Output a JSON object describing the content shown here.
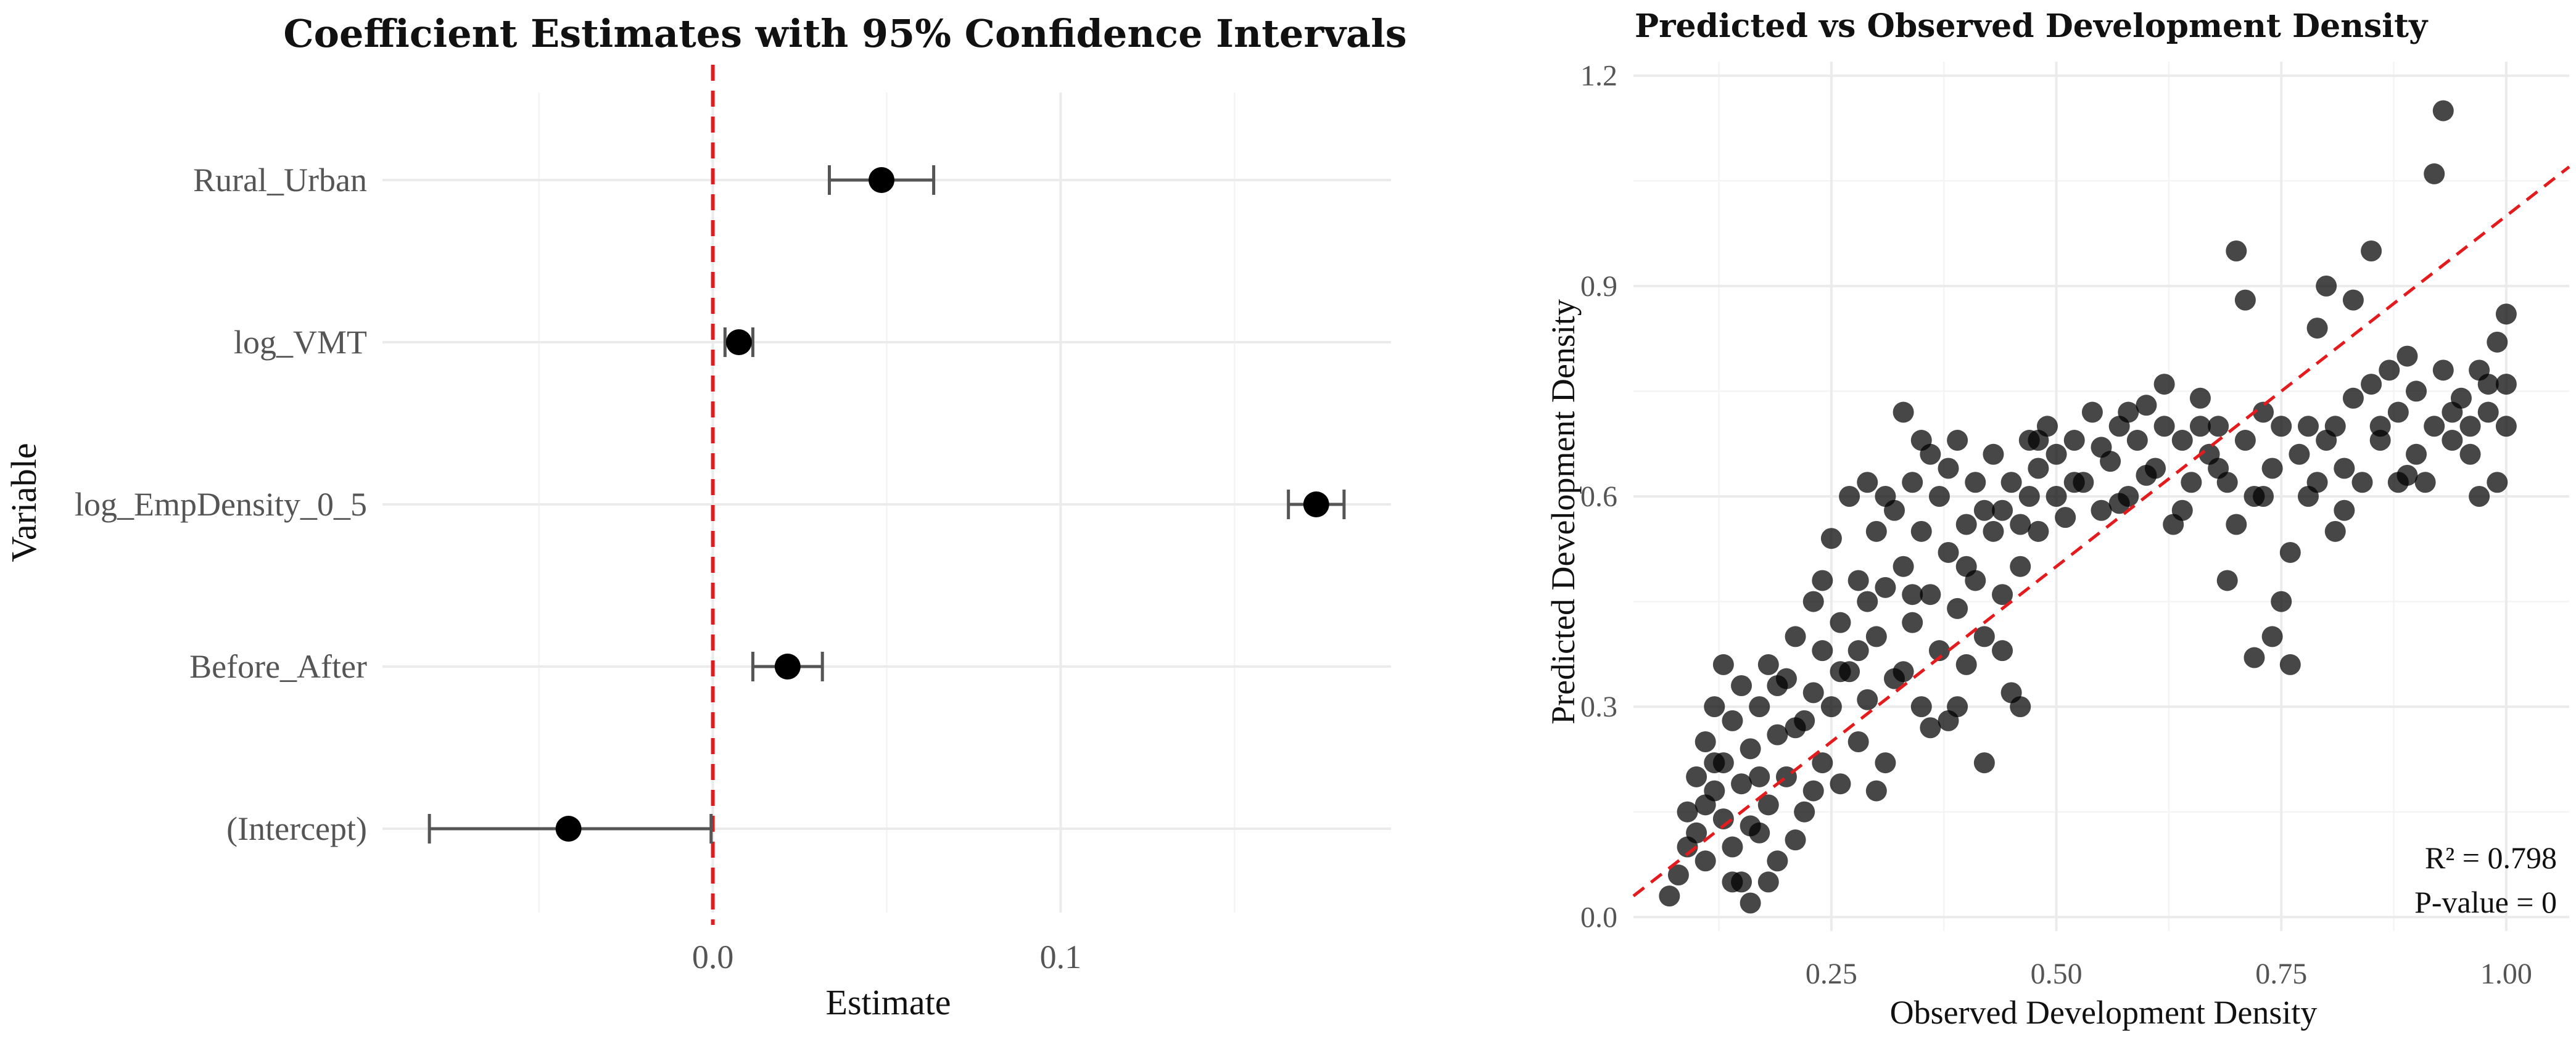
{
  "chart_data": [
    {
      "type": "forest",
      "title": "Coefficient Estimates with 95% Confidence Intervals",
      "xlabel": "Estimate",
      "ylabel": "Variable",
      "xlim": [
        -0.095,
        0.195
      ],
      "xticks": [
        0.0,
        0.1
      ],
      "xtick_labels": [
        "0.0",
        "0.1"
      ],
      "reference_line": {
        "x": 0,
        "color": "#e41a1c",
        "style": "dashed"
      },
      "variables": [
        {
          "name": "Rural_Urban",
          "estimate": 0.0485,
          "lower": 0.0335,
          "upper": 0.0635
        },
        {
          "name": "log_VMT",
          "estimate": 0.0075,
          "lower": 0.0035,
          "upper": 0.0115
        },
        {
          "name": "log_EmpDensity_0_5",
          "estimate": 0.1735,
          "lower": 0.1655,
          "upper": 0.1815
        },
        {
          "name": "Before_After",
          "estimate": 0.0215,
          "lower": 0.0115,
          "upper": 0.0315
        },
        {
          "name": "(Intercept)",
          "estimate": -0.0415,
          "lower": -0.0815,
          "upper": -0.0005
        }
      ]
    },
    {
      "type": "scatter",
      "title": "Predicted vs Observed Development Density",
      "xlabel": "Observed Development Density",
      "ylabel": "Predicted Development Density",
      "xlim": [
        0.03,
        1.07
      ],
      "ylim": [
        -0.02,
        1.22
      ],
      "xticks": [
        0.25,
        0.5,
        0.75,
        1.0
      ],
      "xtick_labels": [
        "0.25",
        "0.50",
        "0.75",
        "1.00"
      ],
      "yticks": [
        0.0,
        0.3,
        0.6,
        0.9,
        1.2
      ],
      "ytick_labels": [
        "0.0",
        "0.3",
        "0.6",
        "0.9",
        "1.2"
      ],
      "reference_line": {
        "slope": 1,
        "intercept": 0,
        "color": "#e41a1c",
        "style": "dashed"
      },
      "annotations": [
        "R² = 0.798",
        "P-value = 0"
      ],
      "points": [
        [
          0.07,
          0.03
        ],
        [
          0.08,
          0.06
        ],
        [
          0.09,
          0.1
        ],
        [
          0.09,
          0.15
        ],
        [
          0.1,
          0.12
        ],
        [
          0.1,
          0.2
        ],
        [
          0.11,
          0.08
        ],
        [
          0.11,
          0.25
        ],
        [
          0.12,
          0.18
        ],
        [
          0.12,
          0.3
        ],
        [
          0.13,
          0.14
        ],
        [
          0.13,
          0.22
        ],
        [
          0.13,
          0.36
        ],
        [
          0.14,
          0.1
        ],
        [
          0.14,
          0.28
        ],
        [
          0.15,
          0.05
        ],
        [
          0.15,
          0.19
        ],
        [
          0.15,
          0.33
        ],
        [
          0.16,
          0.02
        ],
        [
          0.16,
          0.24
        ],
        [
          0.17,
          0.12
        ],
        [
          0.17,
          0.3
        ],
        [
          0.18,
          0.16
        ],
        [
          0.18,
          0.36
        ],
        [
          0.19,
          0.08
        ],
        [
          0.19,
          0.26
        ],
        [
          0.2,
          0.2
        ],
        [
          0.2,
          0.34
        ],
        [
          0.21,
          0.11
        ],
        [
          0.21,
          0.4
        ],
        [
          0.22,
          0.28
        ],
        [
          0.22,
          0.15
        ],
        [
          0.23,
          0.32
        ],
        [
          0.23,
          0.45
        ],
        [
          0.24,
          0.22
        ],
        [
          0.24,
          0.38
        ],
        [
          0.25,
          0.3
        ],
        [
          0.25,
          0.54
        ],
        [
          0.26,
          0.19
        ],
        [
          0.26,
          0.42
        ],
        [
          0.27,
          0.35
        ],
        [
          0.27,
          0.6
        ],
        [
          0.28,
          0.25
        ],
        [
          0.28,
          0.48
        ],
        [
          0.29,
          0.31
        ],
        [
          0.29,
          0.62
        ],
        [
          0.3,
          0.4
        ],
        [
          0.3,
          0.55
        ],
        [
          0.31,
          0.22
        ],
        [
          0.31,
          0.47
        ],
        [
          0.32,
          0.58
        ],
        [
          0.32,
          0.34
        ],
        [
          0.33,
          0.5
        ],
        [
          0.33,
          0.72
        ],
        [
          0.34,
          0.42
        ],
        [
          0.34,
          0.62
        ],
        [
          0.35,
          0.3
        ],
        [
          0.35,
          0.55
        ],
        [
          0.36,
          0.46
        ],
        [
          0.36,
          0.66
        ],
        [
          0.37,
          0.38
        ],
        [
          0.37,
          0.6
        ],
        [
          0.38,
          0.28
        ],
        [
          0.38,
          0.52
        ],
        [
          0.39,
          0.44
        ],
        [
          0.39,
          0.68
        ],
        [
          0.4,
          0.56
        ],
        [
          0.4,
          0.36
        ],
        [
          0.41,
          0.62
        ],
        [
          0.41,
          0.48
        ],
        [
          0.42,
          0.22
        ],
        [
          0.42,
          0.4
        ],
        [
          0.43,
          0.55
        ],
        [
          0.43,
          0.66
        ],
        [
          0.44,
          0.46
        ],
        [
          0.44,
          0.58
        ],
        [
          0.45,
          0.32
        ],
        [
          0.45,
          0.62
        ],
        [
          0.46,
          0.5
        ],
        [
          0.46,
          0.3
        ],
        [
          0.47,
          0.6
        ],
        [
          0.47,
          0.68
        ],
        [
          0.48,
          0.55
        ],
        [
          0.48,
          0.64
        ],
        [
          0.49,
          0.7
        ],
        [
          0.5,
          0.6
        ],
        [
          0.5,
          0.66
        ],
        [
          0.51,
          0.57
        ],
        [
          0.52,
          0.68
        ],
        [
          0.53,
          0.62
        ],
        [
          0.54,
          0.72
        ],
        [
          0.55,
          0.58
        ],
        [
          0.56,
          0.65
        ],
        [
          0.57,
          0.7
        ],
        [
          0.58,
          0.6
        ],
        [
          0.59,
          0.68
        ],
        [
          0.6,
          0.73
        ],
        [
          0.61,
          0.64
        ],
        [
          0.62,
          0.7
        ],
        [
          0.62,
          0.76
        ],
        [
          0.63,
          0.56
        ],
        [
          0.64,
          0.68
        ],
        [
          0.65,
          0.62
        ],
        [
          0.66,
          0.74
        ],
        [
          0.67,
          0.66
        ],
        [
          0.68,
          0.7
        ],
        [
          0.69,
          0.48
        ],
        [
          0.69,
          0.62
        ],
        [
          0.7,
          0.95
        ],
        [
          0.7,
          0.56
        ],
        [
          0.71,
          0.88
        ],
        [
          0.71,
          0.68
        ],
        [
          0.72,
          0.37
        ],
        [
          0.72,
          0.6
        ],
        [
          0.73,
          0.72
        ],
        [
          0.74,
          0.4
        ],
        [
          0.74,
          0.64
        ],
        [
          0.75,
          0.45
        ],
        [
          0.75,
          0.7
        ],
        [
          0.76,
          0.52
        ],
        [
          0.77,
          0.66
        ],
        [
          0.78,
          0.6
        ],
        [
          0.79,
          0.84
        ],
        [
          0.79,
          0.62
        ],
        [
          0.8,
          0.9
        ],
        [
          0.8,
          0.68
        ],
        [
          0.81,
          0.7
        ],
        [
          0.82,
          0.64
        ],
        [
          0.83,
          0.88
        ],
        [
          0.83,
          0.74
        ],
        [
          0.84,
          0.62
        ],
        [
          0.85,
          0.95
        ],
        [
          0.85,
          0.76
        ],
        [
          0.86,
          0.68
        ],
        [
          0.87,
          0.78
        ],
        [
          0.88,
          0.62
        ],
        [
          0.88,
          0.72
        ],
        [
          0.89,
          0.8
        ],
        [
          0.9,
          0.66
        ],
        [
          0.9,
          0.75
        ],
        [
          0.91,
          0.62
        ],
        [
          0.92,
          1.06
        ],
        [
          0.92,
          0.7
        ],
        [
          0.93,
          1.15
        ],
        [
          0.93,
          0.78
        ],
        [
          0.94,
          0.68
        ],
        [
          0.95,
          0.74
        ],
        [
          0.96,
          0.7
        ],
        [
          0.97,
          0.78
        ],
        [
          0.98,
          0.72
        ],
        [
          0.99,
          0.82
        ],
        [
          0.99,
          0.62
        ],
        [
          1.0,
          0.86
        ],
        [
          1.0,
          0.76
        ],
        [
          1.0,
          0.7
        ],
        [
          0.57,
          0.59
        ],
        [
          0.64,
          0.58
        ],
        [
          0.76,
          0.36
        ],
        [
          0.81,
          0.55
        ],
        [
          0.97,
          0.6
        ],
        [
          0.11,
          0.16
        ],
        [
          0.12,
          0.22
        ],
        [
          0.14,
          0.05
        ],
        [
          0.16,
          0.13
        ],
        [
          0.17,
          0.2
        ],
        [
          0.18,
          0.05
        ],
        [
          0.19,
          0.33
        ],
        [
          0.21,
          0.27
        ],
        [
          0.23,
          0.18
        ],
        [
          0.24,
          0.48
        ],
        [
          0.26,
          0.35
        ],
        [
          0.28,
          0.38
        ],
        [
          0.29,
          0.45
        ],
        [
          0.31,
          0.6
        ],
        [
          0.33,
          0.35
        ],
        [
          0.35,
          0.68
        ],
        [
          0.36,
          0.27
        ],
        [
          0.38,
          0.64
        ],
        [
          0.4,
          0.5
        ],
        [
          0.42,
          0.58
        ],
        [
          0.44,
          0.38
        ],
        [
          0.46,
          0.56
        ],
        [
          0.48,
          0.68
        ],
        [
          0.52,
          0.62
        ],
        [
          0.55,
          0.67
        ],
        [
          0.58,
          0.72
        ],
        [
          0.6,
          0.63
        ],
        [
          0.66,
          0.7
        ],
        [
          0.68,
          0.64
        ],
        [
          0.73,
          0.6
        ],
        [
          0.78,
          0.7
        ],
        [
          0.82,
          0.58
        ],
        [
          0.86,
          0.7
        ],
        [
          0.89,
          0.63
        ],
        [
          0.94,
          0.72
        ],
        [
          0.96,
          0.66
        ],
        [
          0.98,
          0.76
        ],
        [
          0.3,
          0.18
        ],
        [
          0.34,
          0.46
        ],
        [
          0.39,
          0.3
        ]
      ]
    }
  ]
}
